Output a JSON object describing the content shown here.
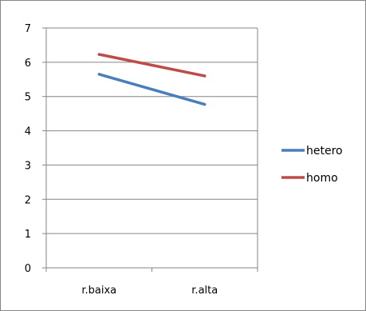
{
  "chart_data": {
    "type": "line",
    "title": "",
    "xlabel": "",
    "ylabel": "",
    "categories": [
      "r.baixa",
      "r.alta"
    ],
    "ylim": [
      0,
      7
    ],
    "yticks": [
      0,
      1,
      2,
      3,
      4,
      5,
      6,
      7
    ],
    "grid": true,
    "legend_position": "right",
    "series": [
      {
        "name": "hetero",
        "values": [
          5.65,
          4.77
        ],
        "color": "#4a7ebb"
      },
      {
        "name": "homo",
        "values": [
          6.23,
          5.6
        ],
        "color": "#be4b48"
      }
    ]
  }
}
